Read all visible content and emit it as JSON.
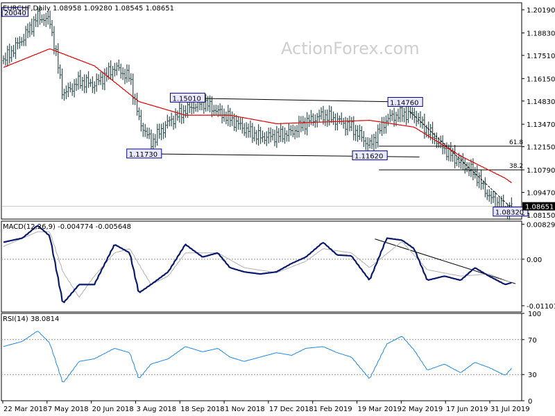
{
  "colors": {
    "price_bar": "#2f4f4f",
    "ma": "#e00000",
    "macd": "#0b1a6e",
    "signal": "#b0b0b0",
    "rsi": "#1e88e5",
    "trend": "#000000",
    "label_border": "#000080",
    "label_fill": "#e8e8ff"
  },
  "chart_data": [
    {
      "type": "line",
      "title": "EURCHF,Daily  1.08958 1.09280 1.08545 1.08651",
      "watermark": "ActionForex.com",
      "x_labels": [
        "22 Mar 2018",
        "7 May 2018",
        "20 Jun 2018",
        "3 Aug 2018",
        "18 Sep 2018",
        "1 Nov 2018",
        "17 Dec 2018",
        "1 Feb 2019",
        "19 Mar 2019",
        "2 May 2019",
        "17 Jun 2019",
        "31 Jul 2019"
      ],
      "y_ticks": [
        "1.20190",
        "1.18830",
        "1.17510",
        "1.16150",
        "1.14830",
        "1.13470",
        "1.12150",
        "1.10790",
        "1.09470",
        "1.08150"
      ],
      "ylim": [
        1.079,
        1.206
      ],
      "current_price": "1.08651",
      "series": [
        {
          "name": "Close",
          "x": [
            "2018-03-22",
            "2018-04-10",
            "2018-04-25",
            "2018-05-07",
            "2018-05-20",
            "2018-06-05",
            "2018-06-20",
            "2018-07-10",
            "2018-07-25",
            "2018-08-03",
            "2018-08-15",
            "2018-09-01",
            "2018-09-18",
            "2018-10-05",
            "2018-10-20",
            "2018-11-01",
            "2018-11-15",
            "2018-12-01",
            "2018-12-17",
            "2019-01-01",
            "2019-01-15",
            "2019-02-01",
            "2019-02-15",
            "2019-03-01",
            "2019-03-19",
            "2019-04-05",
            "2019-04-20",
            "2019-05-02",
            "2019-05-15",
            "2019-06-01",
            "2019-06-17",
            "2019-07-01",
            "2019-07-15",
            "2019-07-31",
            "2019-08-07"
          ],
          "values": [
            1.172,
            1.185,
            1.198,
            1.195,
            1.152,
            1.16,
            1.158,
            1.168,
            1.162,
            1.137,
            1.124,
            1.136,
            1.143,
            1.148,
            1.142,
            1.138,
            1.132,
            1.127,
            1.128,
            1.13,
            1.136,
            1.14,
            1.137,
            1.133,
            1.122,
            1.138,
            1.141,
            1.14,
            1.131,
            1.12,
            1.112,
            1.106,
            1.092,
            1.084,
            1.087
          ]
        },
        {
          "name": "MA",
          "x": [
            "2018-03-22",
            "2018-05-07",
            "2018-06-20",
            "2018-08-03",
            "2018-09-18",
            "2018-11-01",
            "2018-12-17",
            "2019-02-01",
            "2019-03-19",
            "2019-05-02",
            "2019-06-17",
            "2019-07-31",
            "2019-08-07"
          ],
          "values": [
            1.168,
            1.179,
            1.169,
            1.148,
            1.14,
            1.14,
            1.135,
            1.136,
            1.137,
            1.133,
            1.116,
            1.103,
            1.1
          ]
        }
      ],
      "levels": [
        {
          "label": "20040",
          "date": "2018-03-24",
          "value": 1.2004
        },
        {
          "label": "1.15010",
          "date": "2018-09-20",
          "value": 1.1501
        },
        {
          "label": "1.11730",
          "date": "2018-08-08",
          "value": 1.1173
        },
        {
          "label": "1.14760",
          "date": "2019-04-23",
          "value": 1.1476
        },
        {
          "label": "1.11620",
          "date": "2019-03-19",
          "value": 1.1162
        },
        {
          "label": "1.08320",
          "date": "2019-08-05",
          "value": 1.0832
        }
      ],
      "fib_levels": [
        {
          "label": "61.8",
          "value": 1.1218
        },
        {
          "label": "38.2",
          "value": 1.1079
        }
      ],
      "trendlines": [
        "1.15010 to 1.14760 resistance",
        "1.11730 to 1.11620 support"
      ]
    },
    {
      "type": "line",
      "title": "MACD(12,26,9) -0.004774 -0.005648",
      "y_ticks": [
        "0.008292",
        "0.00",
        "-0.011015"
      ],
      "ylim": [
        -0.0125,
        0.009
      ],
      "series": [
        {
          "name": "MACD",
          "x": [
            "2018-03-22",
            "2018-04-10",
            "2018-04-25",
            "2018-05-07",
            "2018-05-20",
            "2018-06-05",
            "2018-06-20",
            "2018-07-10",
            "2018-07-25",
            "2018-08-03",
            "2018-08-15",
            "2018-09-01",
            "2018-09-18",
            "2018-10-05",
            "2018-10-20",
            "2018-11-01",
            "2018-11-15",
            "2018-12-01",
            "2018-12-17",
            "2019-01-01",
            "2019-01-15",
            "2019-02-01",
            "2019-02-15",
            "2019-03-01",
            "2019-03-19",
            "2019-04-05",
            "2019-04-20",
            "2019-05-02",
            "2019-05-15",
            "2019-06-01",
            "2019-06-17",
            "2019-07-01",
            "2019-07-15",
            "2019-07-31",
            "2019-08-07"
          ],
          "values": [
            0.004,
            0.005,
            0.008,
            0.0055,
            -0.0105,
            -0.006,
            -0.006,
            0.0035,
            0.0015,
            -0.008,
            -0.006,
            -0.003,
            0.0035,
            0.0005,
            0.0015,
            -0.002,
            -0.003,
            -0.0035,
            -0.003,
            -0.001,
            0.0005,
            0.004,
            0.001,
            0.0008,
            -0.005,
            0.005,
            0.0045,
            0.0025,
            -0.005,
            -0.004,
            -0.005,
            -0.002,
            -0.004,
            -0.006,
            -0.0055
          ]
        },
        {
          "name": "Signal",
          "x": [
            "2018-03-22",
            "2018-04-25",
            "2018-05-07",
            "2018-05-20",
            "2018-06-05",
            "2018-06-20",
            "2018-07-10",
            "2018-07-25",
            "2018-08-15",
            "2018-09-01",
            "2018-09-18",
            "2018-10-20",
            "2018-11-15",
            "2018-12-17",
            "2019-01-15",
            "2019-02-01",
            "2019-03-01",
            "2019-03-19",
            "2019-04-20",
            "2019-05-15",
            "2019-06-17",
            "2019-07-15",
            "2019-08-07"
          ],
          "values": [
            0.003,
            0.0065,
            0.0065,
            -0.003,
            -0.009,
            -0.004,
            0.0015,
            0.0025,
            -0.006,
            -0.004,
            0.0015,
            0.0015,
            -0.002,
            -0.0032,
            -0.0005,
            0.0025,
            0.0015,
            -0.002,
            0.0042,
            -0.0025,
            -0.004,
            -0.0035,
            -0.0056
          ]
        }
      ]
    },
    {
      "type": "line",
      "title": "RSI(14) 38.0814",
      "y_ticks": [
        "100",
        "70",
        "30",
        "0"
      ],
      "ylim": [
        0,
        100
      ],
      "series": [
        {
          "name": "RSI",
          "x": [
            "2018-03-22",
            "2018-04-10",
            "2018-04-25",
            "2018-05-07",
            "2018-05-20",
            "2018-06-05",
            "2018-06-20",
            "2018-07-10",
            "2018-07-25",
            "2018-08-03",
            "2018-08-15",
            "2018-09-01",
            "2018-09-18",
            "2018-10-05",
            "2018-10-20",
            "2018-11-01",
            "2018-11-15",
            "2018-12-01",
            "2018-12-17",
            "2019-01-01",
            "2019-01-15",
            "2019-02-01",
            "2019-02-15",
            "2019-03-01",
            "2019-03-19",
            "2019-04-05",
            "2019-04-20",
            "2019-05-02",
            "2019-05-15",
            "2019-06-01",
            "2019-06-17",
            "2019-07-01",
            "2019-07-15",
            "2019-07-31",
            "2019-08-07"
          ],
          "values": [
            62,
            68,
            80,
            66,
            20,
            45,
            48,
            60,
            55,
            25,
            42,
            48,
            62,
            56,
            60,
            50,
            45,
            50,
            55,
            52,
            60,
            62,
            55,
            50,
            25,
            65,
            74,
            58,
            35,
            42,
            32,
            44,
            38,
            29,
            38
          ]
        }
      ]
    }
  ]
}
